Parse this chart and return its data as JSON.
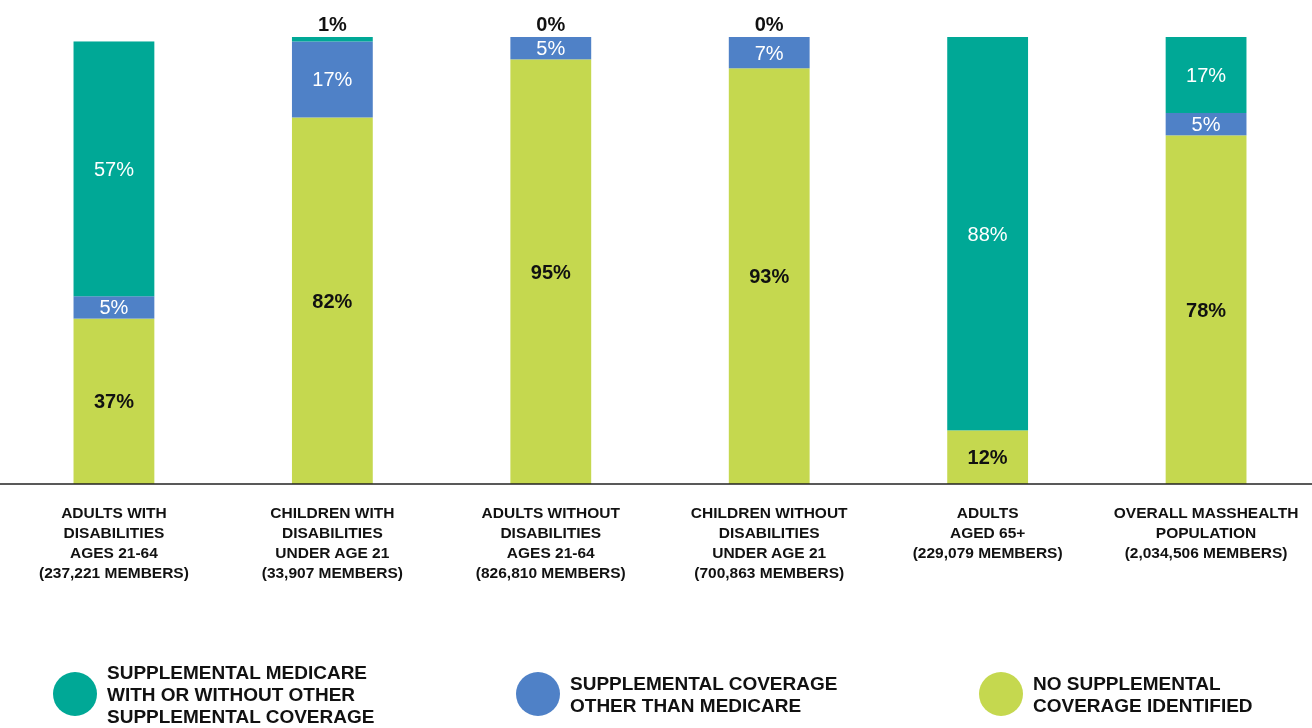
{
  "chart_data": {
    "type": "bar",
    "stacked": true,
    "legend": "bottom",
    "categories": [
      "ADULTS WITH\nDISABILITIES\nAGES 21-64\n(237,221 MEMBERS)",
      "CHILDREN WITH\nDISABILITIES\nUNDER AGE 21\n(33,907 MEMBERS)",
      "ADULTS WITHOUT\nDISABILITIES\nAGES 21-64\n(826,810 MEMBERS)",
      "CHILDREN WITHOUT\nDISABILITIES\nUNDER AGE 21\n(700,863 MEMBERS)",
      "ADULTS\nAGED 65+\n(229,079 MEMBERS)",
      "OVERALL MASSHEALTH\nPOPULATION\n(2,034,506 MEMBERS)"
    ],
    "series": [
      {
        "name": "NO SUPPLEMENTAL\nCOVERAGE IDENTIFIED",
        "color": "#c5d84f",
        "values": [
          37,
          82,
          95,
          93,
          12,
          78
        ],
        "value_labels": [
          "37%",
          "82%",
          "95%",
          "93%",
          "12%",
          "78%"
        ]
      },
      {
        "name": "SUPPLEMENTAL COVERAGE\nOTHER THAN MEDICARE",
        "color": "#4f81c7",
        "values": [
          5,
          17,
          5,
          7,
          0,
          5
        ],
        "value_labels": [
          "5%",
          "17%",
          "5%",
          "7%",
          null,
          "5%"
        ]
      },
      {
        "name": "SUPPLEMENTAL MEDICARE\nWITH OR WITHOUT OTHER\nSUPPLEMENTAL COVERAGE",
        "color": "#00a896",
        "values": [
          57,
          1,
          0,
          0,
          88,
          17
        ],
        "value_labels": [
          "57%",
          "1%",
          "0%",
          "0%",
          "88%",
          "17%"
        ]
      }
    ]
  }
}
